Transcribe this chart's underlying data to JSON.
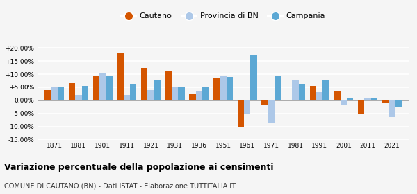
{
  "years": [
    1871,
    1881,
    1901,
    1911,
    1921,
    1931,
    1936,
    1951,
    1961,
    1971,
    1981,
    1991,
    2001,
    2011,
    2021
  ],
  "cautano": [
    3.9,
    6.5,
    9.5,
    17.8,
    12.4,
    11.0,
    2.5,
    8.5,
    -10.1,
    -2.0,
    0.2,
    5.6,
    3.6,
    -5.0,
    -1.0
  ],
  "provincia_bn": [
    5.0,
    2.0,
    10.5,
    2.2,
    3.9,
    5.1,
    3.5,
    9.2,
    -5.0,
    -8.5,
    8.0,
    3.0,
    -2.0,
    1.0,
    -6.5
  ],
  "campania": [
    5.0,
    5.4,
    9.6,
    6.4,
    7.7,
    5.0,
    5.3,
    9.0,
    17.3,
    9.5,
    6.2,
    8.0,
    1.0,
    1.0,
    -2.5
  ],
  "color_cautano": "#d45500",
  "color_provincia": "#adc8e8",
  "color_campania": "#5ca8d4",
  "title": "Variazione percentuale della popolazione ai censimenti",
  "subtitle": "COMUNE DI CAUTANO (BN) - Dati ISTAT - Elaborazione TUTTITALIA.IT",
  "ylim": [
    -15,
    22
  ],
  "yticks": [
    -15.0,
    -10.0,
    -5.0,
    0.0,
    5.0,
    10.0,
    15.0,
    20.0
  ],
  "ytick_labels": [
    "-15.00%",
    "-10.00%",
    "-5.00%",
    "0.00%",
    "+5.00%",
    "+10.00%",
    "+15.00%",
    "+20.00%"
  ],
  "background_color": "#f5f5f5",
  "grid_color": "#ffffff"
}
